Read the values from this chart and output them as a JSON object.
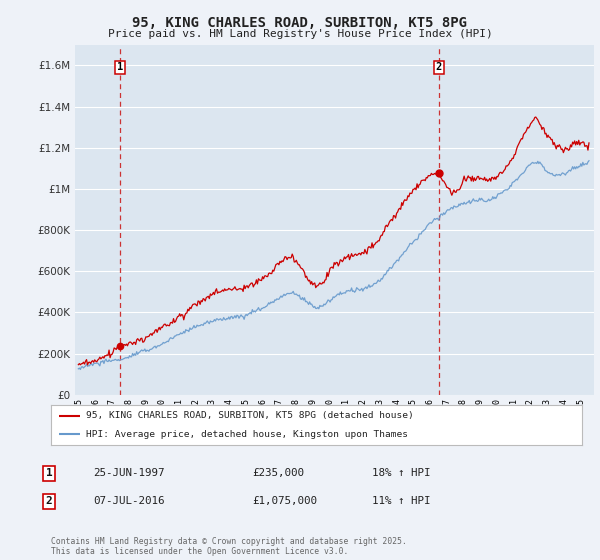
{
  "title_line1": "95, KING CHARLES ROAD, SURBITON, KT5 8PG",
  "title_line2": "Price paid vs. HM Land Registry's House Price Index (HPI)",
  "legend_label1": "95, KING CHARLES ROAD, SURBITON, KT5 8PG (detached house)",
  "legend_label2": "HPI: Average price, detached house, Kingston upon Thames",
  "annotation1_label": "1",
  "annotation1_date": "25-JUN-1997",
  "annotation1_price": "£235,000",
  "annotation1_hpi": "18% ↑ HPI",
  "annotation1_year": 1997.48,
  "annotation1_value": 235000,
  "annotation2_label": "2",
  "annotation2_date": "07-JUL-2016",
  "annotation2_price": "£1,075,000",
  "annotation2_hpi": "11% ↑ HPI",
  "annotation2_year": 2016.52,
  "annotation2_value": 1075000,
  "footer": "Contains HM Land Registry data © Crown copyright and database right 2025.\nThis data is licensed under the Open Government Licence v3.0.",
  "ylim": [
    0,
    1700000
  ],
  "yticks": [
    0,
    200000,
    400000,
    600000,
    800000,
    1000000,
    1200000,
    1400000,
    1600000
  ],
  "xlim_start": 1994.8,
  "xlim_end": 2025.8,
  "background_color": "#eef2f8",
  "plot_bg_color": "#dce6f0",
  "line1_color": "#cc0000",
  "line2_color": "#6699cc",
  "dashed_color": "#cc3333",
  "grid_color": "#ffffff",
  "title_color": "#222222"
}
